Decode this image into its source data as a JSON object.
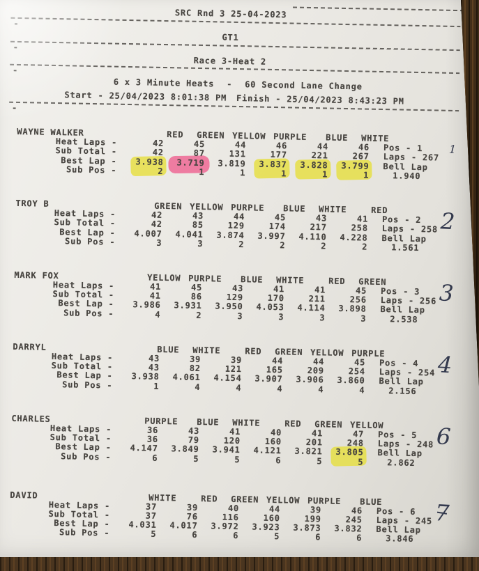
{
  "header": {
    "event_title": "SRC Rnd 3 25-04-2023",
    "class_title": "GT1",
    "race_title": "Race 3-Heat 2",
    "heats_format": "6 x 3 Minute Heats",
    "format_separator": "-",
    "lane_change": "60 Second Lane Change",
    "start": "Start - 25/04/2023 8:01:38 PM",
    "finish": "Finish - 25/04/2023 8:43:23 PM",
    "margin_dash": "-"
  },
  "row_labels": {
    "heat_laps": "Heat Laps -",
    "sub_total": "Sub Total -",
    "best_lap": "Best Lap -",
    "sub_pos": "Sub Pos -"
  },
  "labels": {
    "bell_lap": "Bell Lap"
  },
  "drivers": [
    {
      "name": "WAYNE WALKER",
      "lanes": [
        "RED",
        "GREEN",
        "YELLOW",
        "PURPLE",
        "BLUE",
        "WHITE"
      ],
      "heat_laps": [
        "42",
        "45",
        "44",
        "46",
        "44",
        "46"
      ],
      "sub_total": [
        "42",
        "87",
        "131",
        "177",
        "221",
        "267"
      ],
      "best_lap": [
        "3.938",
        "3.719",
        "3.819",
        "3.837",
        "3.828",
        "3.799"
      ],
      "sub_pos": [
        "2",
        "1",
        "1",
        "1",
        "1",
        "1"
      ],
      "pos": "Pos - 1",
      "laps": "Laps - 267",
      "bell_lap": "1.940",
      "handwritten": "1",
      "highlights": {
        "0": "yellow",
        "1": "pink",
        "3": "yellow",
        "4": "yellow",
        "5": "yellow"
      }
    },
    {
      "name": "TROY B",
      "lanes": [
        "GREEN",
        "YELLOW",
        "PURPLE",
        "BLUE",
        "WHITE",
        "RED"
      ],
      "heat_laps": [
        "42",
        "43",
        "44",
        "45",
        "43",
        "41"
      ],
      "sub_total": [
        "42",
        "85",
        "129",
        "174",
        "217",
        "258"
      ],
      "best_lap": [
        "4.007",
        "4.041",
        "3.874",
        "3.997",
        "4.110",
        "4.228"
      ],
      "sub_pos": [
        "3",
        "3",
        "2",
        "2",
        "2",
        "2"
      ],
      "pos": "Pos - 2",
      "laps": "Laps - 258",
      "bell_lap": "1.561",
      "handwritten": "2",
      "highlights": {}
    },
    {
      "name": "MARK FOX",
      "lanes": [
        "YELLOW",
        "PURPLE",
        "BLUE",
        "WHITE",
        "RED",
        "GREEN"
      ],
      "heat_laps": [
        "41",
        "45",
        "43",
        "41",
        "41",
        "45"
      ],
      "sub_total": [
        "41",
        "86",
        "129",
        "170",
        "211",
        "256"
      ],
      "best_lap": [
        "3.986",
        "3.931",
        "3.950",
        "4.053",
        "4.114",
        "3.898"
      ],
      "sub_pos": [
        "4",
        "2",
        "3",
        "3",
        "3",
        "3"
      ],
      "pos": "Pos - 3",
      "laps": "Laps - 256",
      "bell_lap": "2.538",
      "handwritten": "3",
      "highlights": {}
    },
    {
      "name": "DARRYL",
      "lanes": [
        "BLUE",
        "WHITE",
        "RED",
        "GREEN",
        "YELLOW",
        "PURPLE"
      ],
      "heat_laps": [
        "43",
        "39",
        "39",
        "44",
        "44",
        "45"
      ],
      "sub_total": [
        "43",
        "82",
        "121",
        "165",
        "209",
        "254"
      ],
      "best_lap": [
        "3.938",
        "4.061",
        "4.154",
        "3.907",
        "3.906",
        "3.860"
      ],
      "sub_pos": [
        "1",
        "4",
        "4",
        "4",
        "4",
        "4"
      ],
      "pos": "Pos - 4",
      "laps": "Laps - 254",
      "bell_lap": "2.156",
      "handwritten": "4",
      "highlights": {}
    },
    {
      "name": "CHARLES",
      "lanes": [
        "PURPLE",
        "BLUE",
        "WHITE",
        "RED",
        "GREEN",
        "YELLOW"
      ],
      "heat_laps": [
        "36",
        "43",
        "41",
        "40",
        "41",
        "47"
      ],
      "sub_total": [
        "36",
        "79",
        "120",
        "160",
        "201",
        "248"
      ],
      "best_lap": [
        "4.147",
        "3.849",
        "3.941",
        "4.121",
        "3.821",
        "3.805"
      ],
      "sub_pos": [
        "6",
        "5",
        "5",
        "6",
        "5",
        "5"
      ],
      "pos": "Pos - 5",
      "laps": "Laps - 248",
      "bell_lap": "2.862",
      "handwritten": "6",
      "highlights": {
        "5": "yellow"
      }
    },
    {
      "name": "DAVID",
      "lanes": [
        "WHITE",
        "RED",
        "GREEN",
        "YELLOW",
        "PURPLE",
        "BLUE"
      ],
      "heat_laps": [
        "37",
        "39",
        "40",
        "44",
        "39",
        "46"
      ],
      "sub_total": [
        "37",
        "76",
        "116",
        "160",
        "199",
        "245"
      ],
      "best_lap": [
        "4.031",
        "4.017",
        "3.972",
        "3.923",
        "3.873",
        "3.832"
      ],
      "sub_pos": [
        "5",
        "6",
        "6",
        "5",
        "6",
        "6"
      ],
      "pos": "Pos - 6",
      "laps": "Laps - 245",
      "bell_lap": "3.846",
      "handwritten": "7",
      "highlights": {}
    }
  ],
  "colors": {
    "print_ink": "#474440",
    "pen_ink": "#343a4e",
    "highlight_yellow": "#e6de3c",
    "highlight_pink": "#ee6491",
    "paper": "#eae8e3",
    "wood": "#35240f"
  }
}
